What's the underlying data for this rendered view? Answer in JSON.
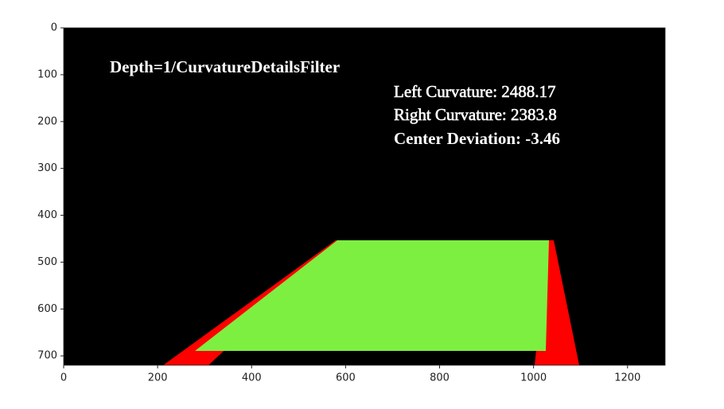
{
  "chart_data": {
    "type": "image",
    "annotations": [
      "Depth=1/CurvatureDetailsFilter",
      "Left Curvature: 2488.17",
      "Right Curvature: 2383.8",
      "Center Deviation: -3.46"
    ],
    "xlim": [
      0,
      1280
    ],
    "ylim": [
      720,
      0
    ],
    "xticks": [
      0,
      200,
      400,
      600,
      800,
      1000,
      1200
    ],
    "yticks": [
      0,
      100,
      200,
      300,
      400,
      500,
      600,
      700
    ]
  }
}
